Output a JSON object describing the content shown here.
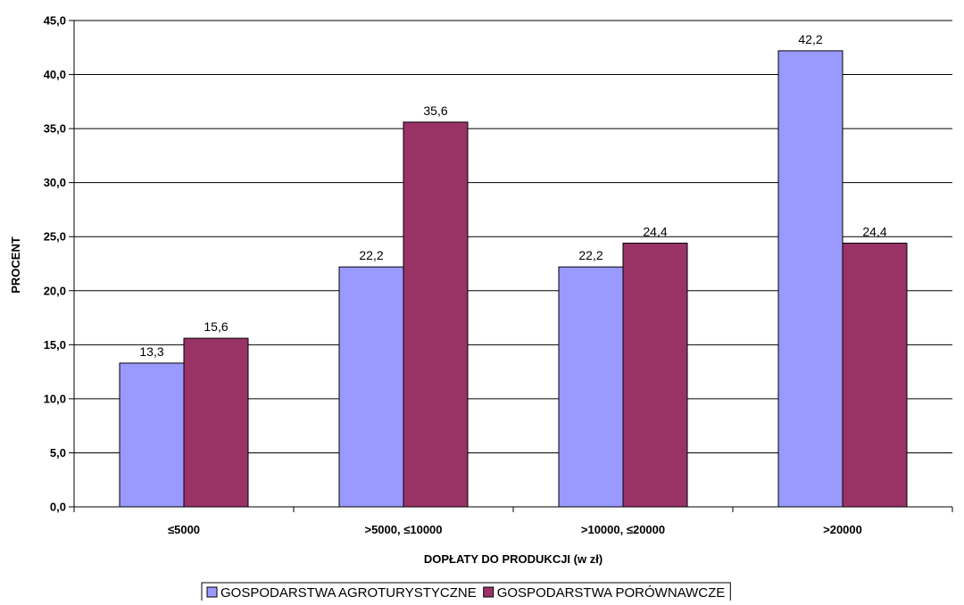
{
  "chart_data": {
    "type": "bar",
    "categories": [
      "≤5000",
      ">5000, ≤10000",
      ">10000, ≤20000",
      ">20000"
    ],
    "series": [
      {
        "name": "GOSPODARSTWA AGROTURYSTYCZNE",
        "values": [
          13.3,
          22.2,
          22.2,
          42.2
        ],
        "color": "#9999ff"
      },
      {
        "name": "GOSPODARSTWA PORÓWNAWCZE",
        "values": [
          15.6,
          35.6,
          24.4,
          24.4
        ],
        "color": "#993366"
      }
    ],
    "data_labels": [
      [
        "13,3",
        "22,2",
        "22,2",
        "42,2"
      ],
      [
        "15,6",
        "35,6",
        "24,4",
        "24,4"
      ]
    ],
    "y_ticks": [
      "0,0",
      "5,0",
      "10,0",
      "15,0",
      "20,0",
      "25,0",
      "30,0",
      "35,0",
      "40,0",
      "45,0"
    ],
    "ylim": [
      0,
      45
    ],
    "y_step": 5,
    "xlabel": "DOPŁATY DO PRODUKCJI (w zł)",
    "ylabel": "PROCENT",
    "grid": true,
    "legend_position": "bottom"
  }
}
